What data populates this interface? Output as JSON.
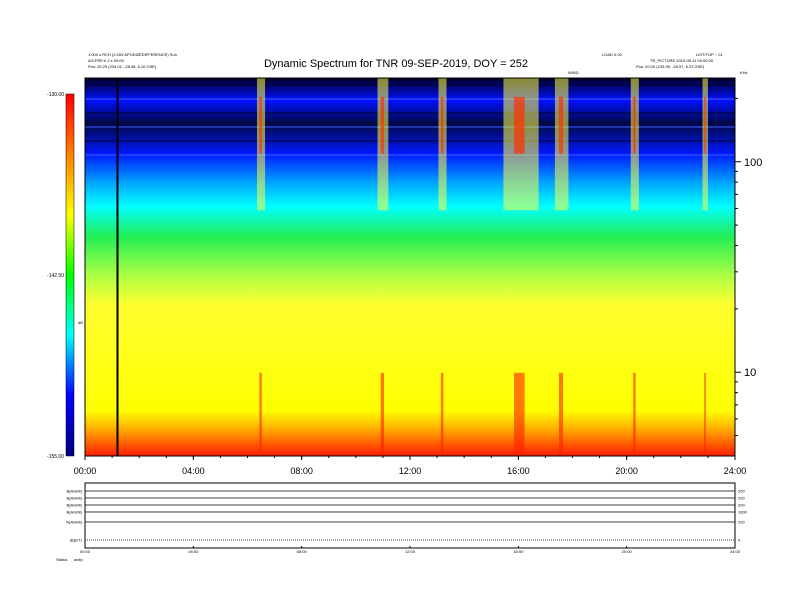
{
  "header": {
    "title": "Dynamic Spectrum for TNR 09-SEP-2019, DOY = 252",
    "left_line1": "1.000 s RCH (2.000 APODIZEDIFFERENCE)   Sun",
    "left_line2": "AG:FRE:0.2 s 00:00",
    "left_line3": "Pos:  25.29 (233.01, -28.98, 6.10 GSE)",
    "right_line1": "LOAD 0.00",
    "right_line2": "TR_PICTURE 2019-09-11 00:00:00",
    "right_line3": "Pos:  20.00 (233.95, -28.97, 6.23 GSE)",
    "mid_right": "WIND",
    "far_right_top": "LIST/TOP ~ 01",
    "corner": "KHz",
    "y_marker_label": "kHz"
  },
  "colorbar": {
    "ticks": [
      "-130.00",
      "-142.50",
      "-155.00"
    ],
    "unit": "dB"
  },
  "chart_data": {
    "type": "heatmap",
    "title": "Dynamic Spectrum for TNR 09-SEP-2019, DOY = 252",
    "x_ticks": [
      "00:00",
      "04:00",
      "08:00",
      "12:00",
      "16:00",
      "20:00",
      "24:00"
    ],
    "x_range_hours": [
      0,
      24
    ],
    "y_scale": "log",
    "y_unit": "kHz",
    "y_ticks": [
      {
        "label": "100",
        "value": 100
      },
      {
        "label": "10",
        "value": 10
      }
    ],
    "y_range_khz": [
      4,
      250
    ],
    "color_range_db": [
      -155,
      -130
    ],
    "vertical_marker_hour": 1.2,
    "colormap": [
      "#00007f",
      "#0000ff",
      "#00ffff",
      "#00ff00",
      "#ffff00",
      "#ff7f00",
      "#ff0000"
    ],
    "bands": [
      {
        "name": "dark_top",
        "y_from_khz": 250,
        "y_to_khz": 170,
        "color": "#000033"
      },
      {
        "name": "blue",
        "y_from_khz": 170,
        "y_to_khz": 80,
        "color": "#0022ff"
      },
      {
        "name": "cyan",
        "y_from_khz": 80,
        "y_to_khz": 40,
        "color": "#00ffff"
      },
      {
        "name": "green",
        "y_from_khz": 40,
        "y_to_khz": 22,
        "color": "#33ee33"
      },
      {
        "name": "yellow",
        "y_from_khz": 22,
        "y_to_khz": 6,
        "color": "#ffff00"
      },
      {
        "name": "red_bottom",
        "y_from_khz": 6,
        "y_to_khz": 4,
        "color": "#ff2000"
      }
    ],
    "bursts": [
      {
        "hour": 6.5,
        "width_h": 0.3
      },
      {
        "hour": 11.0,
        "width_h": 0.4
      },
      {
        "hour": 13.2,
        "width_h": 0.3
      },
      {
        "hour": 16.1,
        "width_h": 1.3
      },
      {
        "hour": 17.6,
        "width_h": 0.5
      },
      {
        "hour": 20.3,
        "width_h": 0.3
      },
      {
        "hour": 22.9,
        "width_h": 0.2
      }
    ]
  },
  "panels": {
    "left_labels": [
      "B(AGMI)",
      "B(AGMI)",
      "B(AGMI)",
      "B(AGMI)",
      "N(AGMI)",
      "|B|(nT)"
    ],
    "right_labels": [
      "200",
      "200",
      "200",
      "1000",
      "200",
      "0"
    ],
    "x_ticks": [
      "00:00",
      "04:00",
      "08:00",
      "12:00",
      "16:00",
      "20:00",
      "24:00"
    ],
    "status_label": "Status",
    "status_value": "anlfp"
  }
}
